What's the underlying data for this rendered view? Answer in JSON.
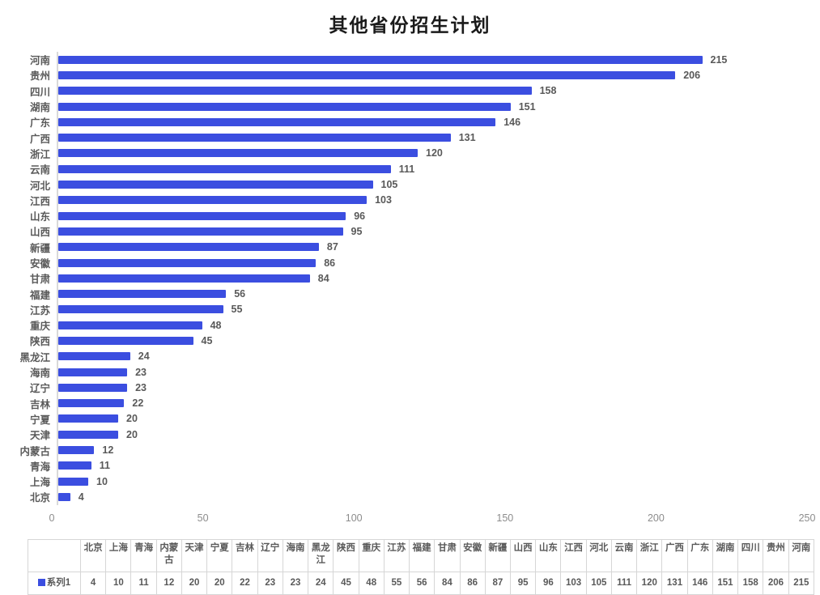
{
  "chart_data": {
    "type": "bar",
    "orientation": "horizontal",
    "title": "其他省份招生计划",
    "categories": [
      "河南",
      "贵州",
      "四川",
      "湖南",
      "广东",
      "广西",
      "浙江",
      "云南",
      "河北",
      "江西",
      "山东",
      "山西",
      "新疆",
      "安徽",
      "甘肃",
      "福建",
      "江苏",
      "重庆",
      "陕西",
      "黑龙江",
      "海南",
      "辽宁",
      "吉林",
      "宁夏",
      "天津",
      "内蒙古",
      "青海",
      "上海",
      "北京"
    ],
    "values": [
      215,
      206,
      158,
      151,
      146,
      131,
      120,
      111,
      105,
      103,
      96,
      95,
      87,
      86,
      84,
      56,
      55,
      48,
      45,
      24,
      23,
      23,
      22,
      20,
      20,
      12,
      11,
      10,
      4
    ],
    "xlabel": "",
    "ylabel": "",
    "xlim": [
      0,
      250
    ],
    "xticks": [
      0,
      50,
      100,
      150,
      200,
      250
    ],
    "grid": false,
    "data_labels": true,
    "legend": [
      "系列1"
    ],
    "legend_position": "bottom-table"
  },
  "table": {
    "legend_label": "系列1",
    "columns": [
      "北京",
      "上海",
      "青海",
      "内蒙古",
      "天津",
      "宁夏",
      "吉林",
      "辽宁",
      "海南",
      "黑龙江",
      "陕西",
      "重庆",
      "江苏",
      "福建",
      "甘肃",
      "安徽",
      "新疆",
      "山西",
      "山东",
      "江西",
      "河北",
      "云南",
      "浙江",
      "广西",
      "广东",
      "湖南",
      "四川",
      "贵州",
      "河南"
    ],
    "values": [
      4,
      10,
      11,
      12,
      20,
      20,
      22,
      23,
      23,
      24,
      45,
      48,
      55,
      56,
      84,
      86,
      87,
      95,
      96,
      103,
      105,
      111,
      120,
      131,
      146,
      151,
      158,
      206,
      215
    ]
  },
  "colors": {
    "bar": "#3b4ee0",
    "label_text": "#595959",
    "tick_text": "#8c8c8c",
    "axis_line": "#d9d9d9",
    "table_border": "#d6d6d6",
    "title_text": "#1a1a1a"
  }
}
